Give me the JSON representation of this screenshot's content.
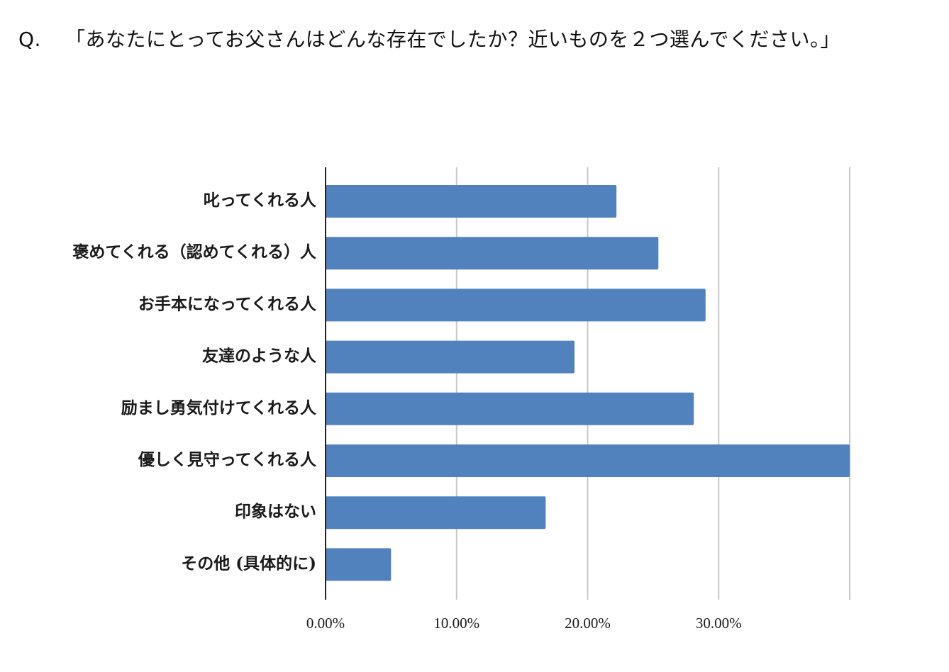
{
  "question": {
    "prefix": "Q.",
    "text": "「あなたにとってお父さんはどんな存在でしたか？近いものを２つ選んでください。」"
  },
  "colors": {
    "bar": "#5182bd",
    "grid": "#c8c8c8",
    "axis": "#222222"
  },
  "chart_data": {
    "type": "bar",
    "orientation": "horizontal",
    "title": "",
    "xlabel": "",
    "ylabel": "",
    "categories": [
      "叱ってくれる人",
      "褒めてくれる（認めてくれる）人",
      "お手本になってくれる人",
      "友達のような人",
      "励まし勇気付けてくれる人",
      "優しく見守ってくれる人",
      "印象はない",
      "その他 (具体的に)"
    ],
    "values": [
      22.2,
      25.4,
      29.0,
      19.0,
      28.1,
      40.0,
      16.8,
      5.0
    ],
    "xlim": [
      0,
      40
    ],
    "xticks": [
      0,
      10,
      20,
      30
    ],
    "xtick_labels": [
      "0.00%",
      "10.00%",
      "20.00%",
      "30.00%"
    ],
    "gridlines": [
      10,
      20,
      30,
      40
    ],
    "grid": true,
    "legend": "none"
  }
}
